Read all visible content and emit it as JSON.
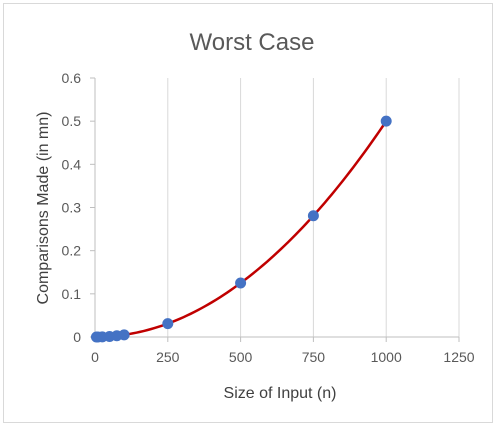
{
  "chart_data": {
    "type": "scatter",
    "title": "Worst Case",
    "xlabel": "Size of Input (n)",
    "ylabel": "Comparisons Made (in mn)",
    "xlim": [
      0,
      1250
    ],
    "ylim": [
      0,
      0.6
    ],
    "xticks": [
      0,
      250,
      500,
      750,
      1000,
      1250
    ],
    "yticks": [
      0,
      0.1,
      0.2,
      0.3,
      0.4,
      0.5,
      0.6
    ],
    "xtick_labels": [
      "0",
      "250",
      "500",
      "750",
      "1000",
      "1250"
    ],
    "ytick_labels": [
      "0",
      "0.1",
      "0.2",
      "0.3",
      "0.4",
      "0.5",
      "0.6"
    ],
    "grid": "vertical",
    "legend": "none",
    "series": [
      {
        "x": [
          5,
          10,
          25,
          50,
          75,
          100,
          250,
          500,
          750,
          1000
        ],
        "y": [
          1.25e-05,
          5e-05,
          0.0003,
          0.00125,
          0.0028,
          0.005,
          0.031,
          0.125,
          0.281,
          0.5
        ],
        "marker_color": "#4472c4",
        "line_color": "#c00000",
        "line": "smooth"
      }
    ]
  }
}
